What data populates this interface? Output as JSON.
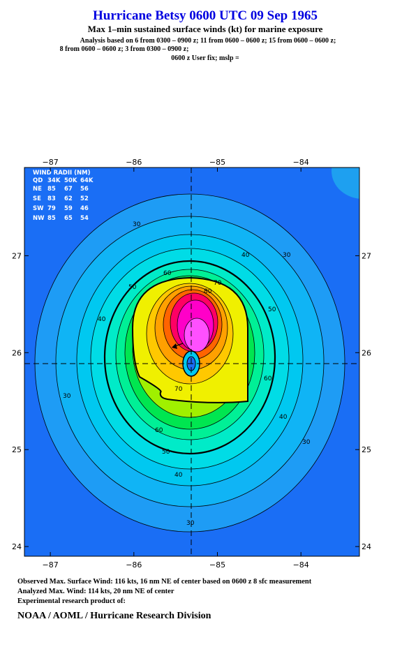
{
  "chart_data": {
    "type": "contour",
    "title": "Hurricane Betsy 0600 UTC 09 Sep 1965",
    "subtitle": "Max 1–min sustained surface winds (kt) for marine exposure",
    "analysis_lines": [
      "Analysis based on  6 from 0300 – 0900 z;  11 from 0600 – 0600 z;  15 from 0600 – 0600 z;",
      "8 from 0600 – 0600 z;  3 from 0300 – 0900 z;",
      "0600 z User fix; mslp ="
    ],
    "xlim": [
      -87.31,
      -83.3
    ],
    "ylim": [
      23.9,
      27.91
    ],
    "xticks": [
      {
        "value": -87,
        "label": "−87"
      },
      {
        "value": -86,
        "label": "−86"
      },
      {
        "value": -85,
        "label": "−85"
      },
      {
        "value": -84,
        "label": "−84"
      }
    ],
    "yticks": [
      24,
      25,
      26,
      27
    ],
    "center": [
      -85.3,
      25.9
    ],
    "wind_radii": {
      "title": "WIND RADII (NM)",
      "header": [
        "QD",
        "34K",
        "50K",
        "64K"
      ],
      "rows": [
        [
          "NE",
          85,
          67,
          56
        ],
        [
          "SE",
          83,
          62,
          52
        ],
        [
          "SW",
          79,
          59,
          46
        ],
        [
          "NW",
          85,
          65,
          54
        ]
      ]
    },
    "contour_labels": [
      30,
      30,
      30,
      30,
      30,
      40,
      40,
      40,
      40,
      50,
      50,
      50,
      60,
      60,
      60,
      70,
      70,
      80
    ],
    "footer": [
      "Observed Max. Surface Wind: 116 kts, 16 nm NE of center based on 0600 z 8 sfc measurement",
      "Analyzed Max. Wind: 114 kts, 20 nm NE of center",
      "Experimental research product of:",
      "NOAA / AOML / Hurricane Research Division"
    ]
  }
}
